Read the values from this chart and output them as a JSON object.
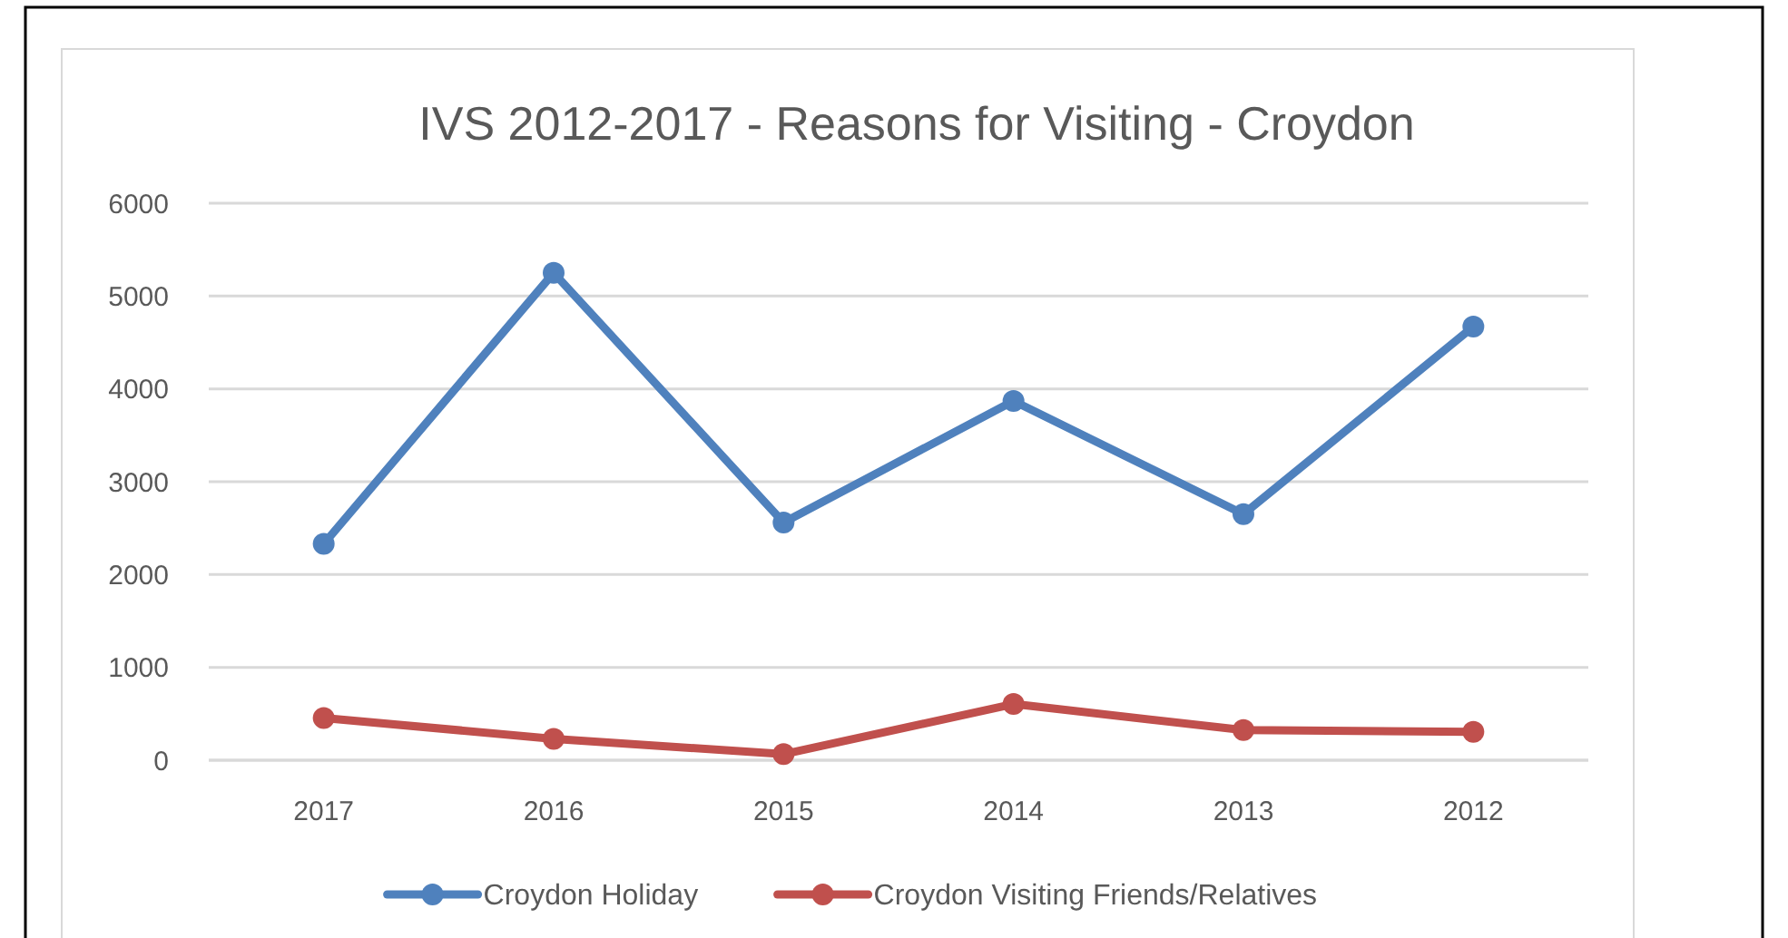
{
  "chart_data": {
    "type": "line",
    "title": "IVS 2012-2017 - Reasons for Visiting - Croydon",
    "categories": [
      "2017",
      "2016",
      "2015",
      "2014",
      "2013",
      "2012"
    ],
    "series": [
      {
        "name": "Croydon Holiday",
        "color": "#4f81bd",
        "values": [
          2330,
          5250,
          2560,
          3870,
          2650,
          4670
        ]
      },
      {
        "name": "Croydon Visiting Friends/Relatives",
        "color": "#c0504d",
        "values": [
          455,
          230,
          65,
          605,
          325,
          305
        ]
      }
    ],
    "ylim": [
      0,
      6000
    ],
    "yticks": [
      0,
      1000,
      2000,
      3000,
      4000,
      5000,
      6000
    ],
    "grid": "y",
    "legend": "bottom",
    "marker": "circle",
    "line_style": "solid"
  }
}
